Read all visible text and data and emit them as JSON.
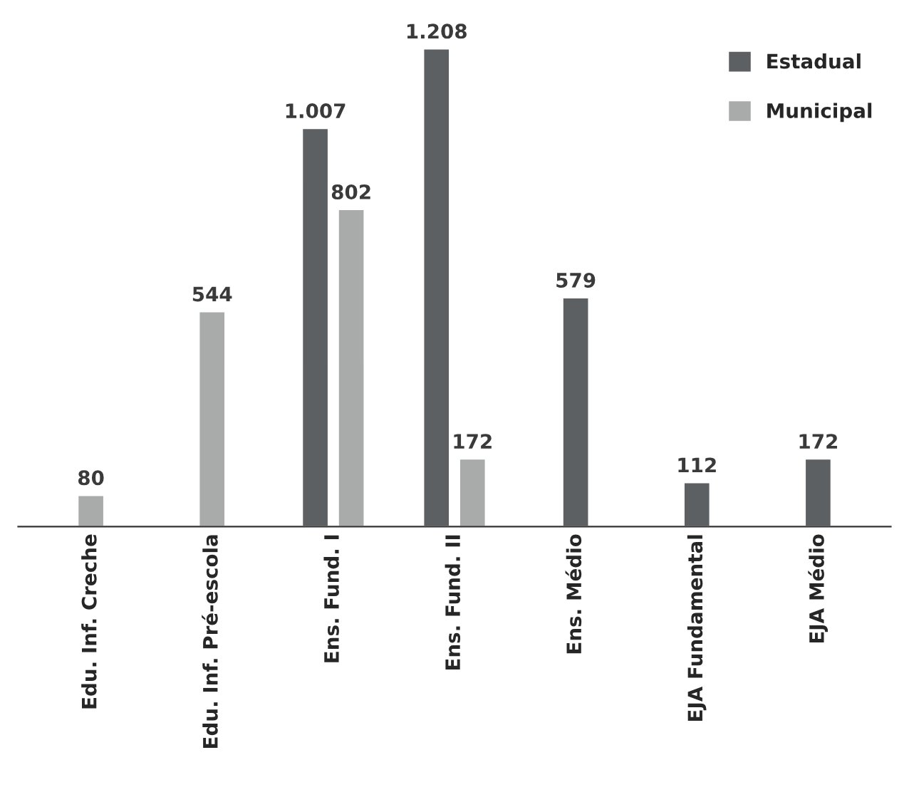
{
  "chart_data": {
    "type": "bar",
    "categories": [
      "Edu. Inf. Creche",
      "Edu. Inf. Pré-escola",
      "Ens. Fund. I",
      "Ens. Fund. II",
      "Ens. Médio",
      "EJA Fundamental",
      "EJA Médio"
    ],
    "series": [
      {
        "name": "Estadual",
        "color": "#5d6063",
        "values": [
          null,
          null,
          1007,
          1208,
          579,
          112,
          172
        ],
        "value_labels": [
          null,
          null,
          "1.007",
          "1.208",
          "579",
          "112",
          "172"
        ]
      },
      {
        "name": "Municipal",
        "color": "#a9abab",
        "values": [
          80,
          544,
          802,
          172,
          null,
          null,
          null
        ],
        "value_labels": [
          "80",
          "544",
          "802",
          "172",
          null,
          null,
          null
        ]
      }
    ],
    "tick_labels": "x",
    "grid": false,
    "legend": "top right"
  }
}
